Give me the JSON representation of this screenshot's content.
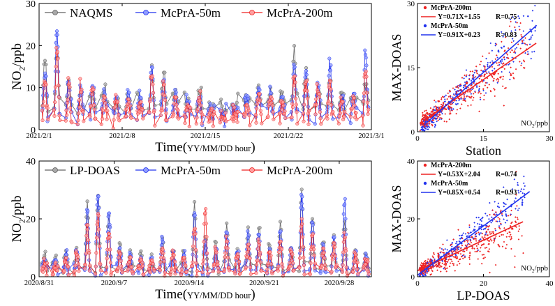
{
  "figure": {
    "colors": {
      "ref": "#606060",
      "mc50": "#2233ee",
      "mc200": "#ee2222",
      "mc50_light": "#8f9cff",
      "mc200_light": "#ff9f9f",
      "ref_light": "#a8a8a8"
    }
  },
  "chart_data": [
    {
      "type": "line",
      "panel": "top-left",
      "xlabel_main": "Time",
      "xlabel_unit": "YY/MM/DD hour",
      "ylabel_main": "NO",
      "ylabel_sub": "2",
      "ylabel_unit": "/ppb",
      "x_tick_labels": [
        "2021/2/1",
        "2021/2/8",
        "2021/2/15",
        "2021/2/22",
        "2021/3/1"
      ],
      "x_tick_days": [
        0,
        7,
        14,
        21,
        28
      ],
      "xlim_days": [
        0,
        28
      ],
      "ylim": [
        0,
        30
      ],
      "y_ticks": [
        0,
        10,
        20,
        30
      ],
      "y_tick_labels": [
        "0",
        "10",
        "20",
        "30"
      ],
      "legend": [
        "NAQMS",
        "McPrA-50m",
        "McPrA-200m"
      ],
      "seed": 11,
      "series": [
        {
          "name": "NAQMS",
          "key": "ref",
          "daily_peaks": [
            18,
            19,
            12,
            9,
            9,
            10,
            7,
            8,
            6,
            16,
            14,
            10,
            7,
            9,
            5,
            4,
            5,
            7,
            11,
            10,
            9,
            20,
            15,
            9,
            13,
            9,
            8,
            10
          ],
          "baseline": 6
        },
        {
          "name": "McPrA-50m",
          "key": "mc50",
          "daily_peaks": [
            14,
            24,
            12,
            10,
            11,
            9,
            8,
            9,
            8,
            15,
            12,
            9,
            7,
            8,
            5,
            4,
            5,
            7,
            10,
            9,
            8,
            16,
            14,
            10,
            15,
            8,
            9,
            19
          ],
          "baseline": 4
        },
        {
          "name": "McPrA-200m",
          "key": "mc200",
          "daily_peaks": [
            12,
            20,
            11,
            9,
            10,
            8,
            7,
            8,
            7,
            13,
            11,
            8,
            6,
            7,
            5,
            3,
            4,
            6,
            9,
            8,
            7,
            13,
            12,
            9,
            12,
            7,
            8,
            14
          ],
          "baseline": 3
        }
      ]
    },
    {
      "type": "line",
      "panel": "bottom-left",
      "xlabel_main": "Time",
      "xlabel_unit": "YY/MM/DD hour",
      "ylabel_main": "NO",
      "ylabel_sub": "2",
      "ylabel_unit": "/ppb",
      "x_tick_labels": [
        "2020/8/31",
        "2020/9/7",
        "2020/9/14",
        "2020/9/21",
        "2020/9/28"
      ],
      "x_tick_days": [
        0,
        7,
        14,
        21,
        28
      ],
      "xlim_days": [
        0,
        31
      ],
      "ylim": [
        0,
        40
      ],
      "y_ticks": [
        0,
        20,
        40
      ],
      "y_tick_labels": [
        "0",
        "20",
        "40"
      ],
      "legend": [
        "LP-DOAS",
        "McPrA-50m",
        "McPrA-200m"
      ],
      "seed": 29,
      "series": [
        {
          "name": "LP-DOAS",
          "key": "ref",
          "daily_peaks": [
            8,
            7,
            10,
            11,
            27,
            29,
            23,
            12,
            10,
            9,
            8,
            14,
            10,
            9,
            26,
            14,
            12,
            19,
            10,
            18,
            18,
            12,
            20,
            11,
            32,
            21,
            13,
            16,
            20,
            10,
            8
          ],
          "baseline": 3
        },
        {
          "name": "McPrA-50m",
          "key": "mc50",
          "daily_peaks": [
            6,
            6,
            8,
            9,
            24,
            30,
            22,
            10,
            8,
            7,
            7,
            13,
            9,
            8,
            22,
            12,
            10,
            16,
            9,
            15,
            15,
            10,
            17,
            10,
            28,
            19,
            11,
            14,
            27,
            9,
            7
          ],
          "baseline": 2
        },
        {
          "name": "McPrA-200m",
          "key": "mc200",
          "daily_peaks": [
            5,
            5,
            7,
            8,
            18,
            22,
            16,
            9,
            7,
            6,
            6,
            10,
            8,
            7,
            18,
            24,
            9,
            13,
            8,
            12,
            12,
            9,
            13,
            9,
            20,
            15,
            10,
            12,
            14,
            8,
            6
          ],
          "baseline": 2
        }
      ]
    },
    {
      "type": "scatter",
      "panel": "top-right",
      "xlabel": "Station",
      "ylabel": "MAX-DOAS",
      "unit_main": "NO",
      "unit_sub": "2",
      "unit_rest": "/ppb",
      "xlim": [
        0,
        30
      ],
      "ylim": [
        0,
        30
      ],
      "x_ticks": [
        0,
        15,
        30
      ],
      "x_tick_labels": [
        "0",
        "15",
        "30"
      ],
      "y_ticks": [
        0,
        15,
        30
      ],
      "y_tick_labels": [
        "0",
        "15",
        "30"
      ],
      "seed": 5,
      "series": [
        {
          "name": "McPrA-200m",
          "key": "mc200",
          "slope": 0.71,
          "intercept": 1.55,
          "equation": "Y=0.71X+1.55",
          "r_label": "R=0.75",
          "fit_range": [
            1.5,
            27
          ],
          "n": 420,
          "x_max": 25,
          "spread": 0.32
        },
        {
          "name": "McPrA-50m",
          "key": "mc50",
          "slope": 0.91,
          "intercept": 0.23,
          "equation": "Y=0.91X+0.23",
          "r_label": "R=0.83",
          "fit_range": [
            1.5,
            27
          ],
          "n": 330,
          "x_max": 27,
          "spread": 0.28
        }
      ]
    },
    {
      "type": "scatter",
      "panel": "bottom-right",
      "xlabel": "LP-DOAS",
      "ylabel": "MAX-DOAS",
      "unit_main": "NO",
      "unit_sub": "2",
      "unit_rest": "/ppb",
      "xlim": [
        0,
        40
      ],
      "ylim": [
        0,
        40
      ],
      "x_ticks": [
        0,
        20,
        40
      ],
      "x_tick_labels": [
        "0",
        "20",
        "40"
      ],
      "y_ticks": [
        0,
        20,
        40
      ],
      "y_tick_labels": [
        "0",
        "20",
        "40"
      ],
      "seed": 17,
      "series": [
        {
          "name": "McPrA-200m",
          "key": "mc200",
          "slope": 0.53,
          "intercept": 2.04,
          "equation": "Y=0.53X+2.04",
          "r_label": "R=0.74",
          "fit_range": [
            0,
            32
          ],
          "n": 430,
          "x_max": 32,
          "spread": 0.4
        },
        {
          "name": "McPrA-50m",
          "key": "mc50",
          "slope": 0.85,
          "intercept": 0.54,
          "equation": "Y=0.85X+0.54",
          "r_label": "R=0.93",
          "fit_range": [
            0,
            34
          ],
          "n": 320,
          "x_max": 33,
          "spread": 0.25
        }
      ]
    }
  ]
}
